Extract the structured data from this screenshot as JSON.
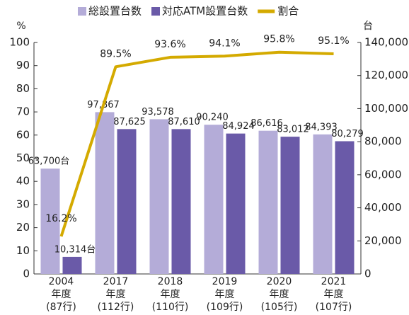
{
  "chart_data": {
    "type": "bar",
    "categories": [
      [
        "2004",
        "年度",
        "(87行)"
      ],
      [
        "2017",
        "年度",
        "(112行)"
      ],
      [
        "2018",
        "年度",
        "(110行)"
      ],
      [
        "2019",
        "年度",
        "(109行)"
      ],
      [
        "2020",
        "年度",
        "(105行)"
      ],
      [
        "2021",
        "年度",
        "(107行)"
      ]
    ],
    "y_label": "%",
    "y2_label": "台",
    "ylim": [
      0,
      100
    ],
    "yticks": [
      0,
      10,
      20,
      30,
      40,
      50,
      60,
      70,
      80,
      90,
      100
    ],
    "y2lim": [
      0,
      140000
    ],
    "y2ticks": [
      0,
      {
        "value": 20000,
        "label": "20,000"
      },
      {
        "value": 40000,
        "label": "40,000"
      },
      {
        "value": 60000,
        "label": "60,000"
      },
      {
        "value": 80000,
        "label": "80,000"
      },
      {
        "value": 100000,
        "label": "100,000"
      },
      {
        "value": 120000,
        "label": "120,000"
      },
      {
        "value": 140000,
        "label": "140,000"
      }
    ],
    "series": [
      {
        "name": "総設置台数",
        "type": "bar",
        "axis": "y2",
        "color": "#b4acd8",
        "values": [
          63700,
          97867,
          93578,
          90240,
          86616,
          84393
        ],
        "value_labels": [
          "63,700台",
          "97,867",
          "93,578",
          "90,240",
          "86,616",
          "84,393"
        ]
      },
      {
        "name": "対応ATM設置台数",
        "type": "bar",
        "axis": "y2",
        "color": "#6a5aa8",
        "values": [
          10314,
          87625,
          87610,
          84924,
          83012,
          80279
        ],
        "value_labels": [
          "10,314台",
          "87,625",
          "87,610",
          "84,924",
          "83,012",
          "80,279"
        ]
      },
      {
        "name": "割合",
        "type": "line",
        "axis": "y",
        "color": "#d4aa00",
        "values": [
          16.2,
          89.5,
          93.6,
          94.1,
          95.8,
          95.1
        ],
        "value_labels": [
          "16.2%",
          "89.5%",
          "93.6%",
          "94.1%",
          "95.8%",
          "95.1%"
        ]
      }
    ]
  }
}
